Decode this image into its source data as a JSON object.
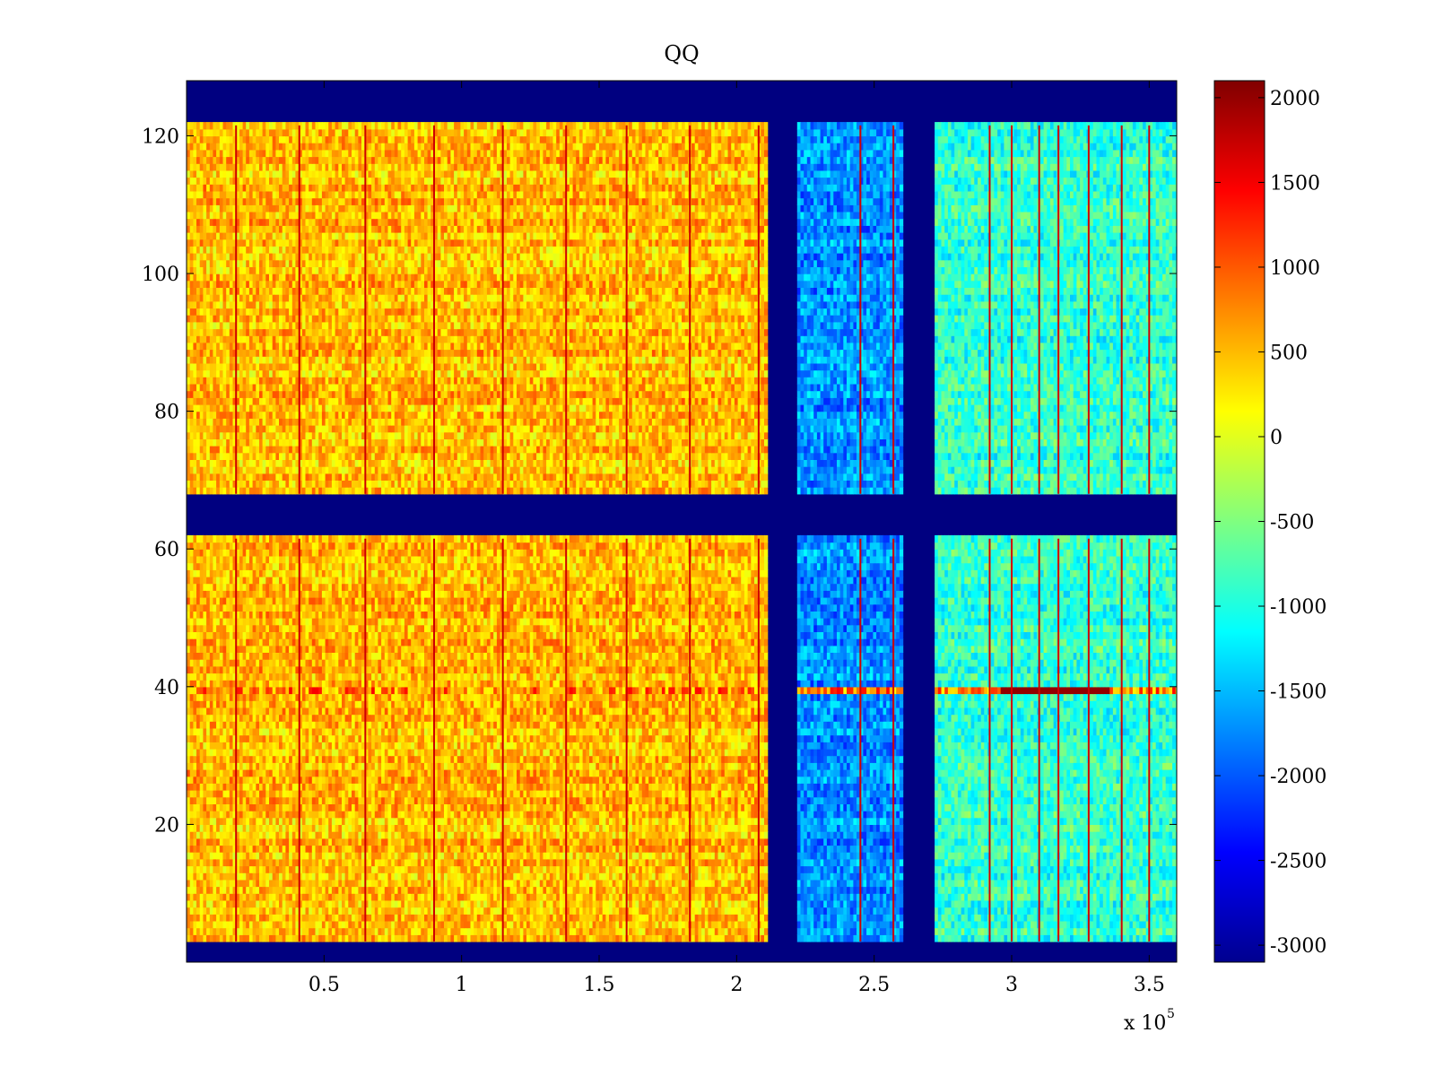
{
  "chart_data": {
    "type": "heatmap",
    "title": "QQ",
    "xlabel": "",
    "ylabel": "",
    "x_exponent_label": "x 10",
    "x_exponent_power": "5",
    "xlim": [
      0,
      3.6
    ],
    "ylim": [
      0,
      128
    ],
    "x_ticks": [
      0.5,
      1,
      1.5,
      2,
      2.5,
      3,
      3.5
    ],
    "x_tick_labels": [
      "0.5",
      "1",
      "1.5",
      "2",
      "2.5",
      "3",
      "3.5"
    ],
    "y_ticks": [
      20,
      40,
      60,
      80,
      100,
      120
    ],
    "y_tick_labels": [
      "20",
      "40",
      "60",
      "80",
      "100",
      "120"
    ],
    "colormap": "jet",
    "clim": [
      -3100,
      2100
    ],
    "colorbar_ticks": [
      2000,
      1500,
      1000,
      500,
      0,
      -500,
      -1000,
      -1500,
      -2000,
      -2500,
      -3000
    ],
    "colorbar_tick_labels": [
      "2000",
      "1500",
      "1000",
      "500",
      "0",
      "-500",
      "-1000",
      "-1500",
      "-2000",
      "-2500",
      "-3000"
    ],
    "regions": [
      {
        "x_range": [
          0,
          2.11
        ],
        "y_range": [
          3,
          61.5
        ],
        "approx_value": 500,
        "label": "left block lower"
      },
      {
        "x_range": [
          0,
          2.11
        ],
        "y_range": [
          68,
          121.5
        ],
        "approx_value": 500,
        "label": "left block upper"
      },
      {
        "x_range": [
          2.22,
          2.6
        ],
        "y_range": [
          3,
          61.5
        ],
        "approx_value": -1700,
        "label": "middle block lower"
      },
      {
        "x_range": [
          2.22,
          2.6
        ],
        "y_range": [
          68,
          121.5
        ],
        "approx_value": -1700,
        "label": "middle block upper"
      },
      {
        "x_range": [
          2.72,
          3.6
        ],
        "y_range": [
          3,
          61.5
        ],
        "approx_value": -900,
        "label": "right block lower"
      },
      {
        "x_range": [
          2.72,
          3.6
        ],
        "y_range": [
          68,
          121.5
        ],
        "approx_value": -900,
        "label": "right block upper"
      }
    ],
    "background_value": -3100,
    "vertical_lines_x": [
      0.18,
      0.41,
      0.65,
      0.9,
      1.15,
      1.38,
      1.6,
      1.83,
      2.08,
      2.45,
      2.57,
      2.92,
      3.0,
      3.1,
      3.17,
      3.28,
      3.4,
      3.5
    ],
    "row_feature": {
      "y": 39,
      "value_left": 800,
      "value_right": 2000,
      "hot_x_range": [
        2.95,
        3.35
      ]
    }
  }
}
